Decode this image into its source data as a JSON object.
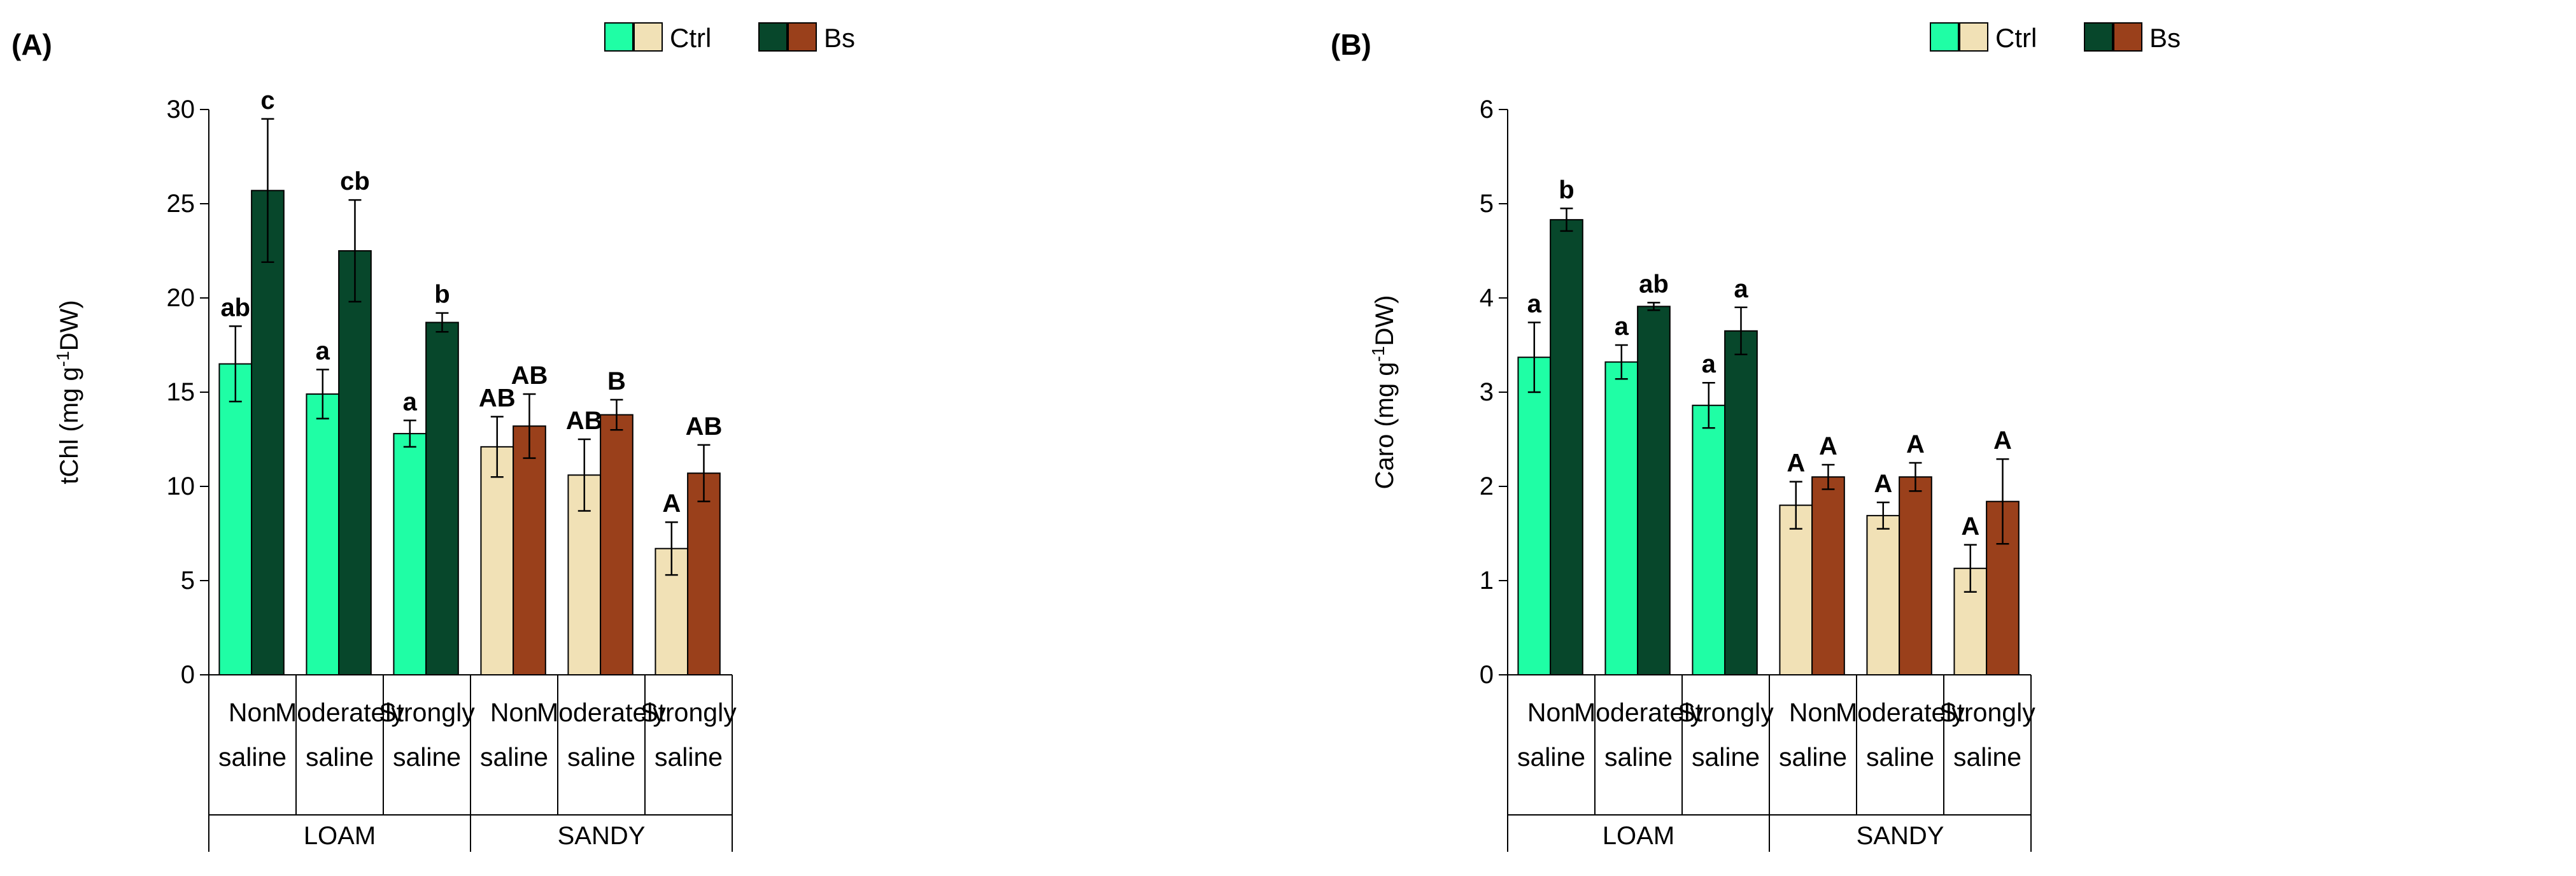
{
  "legend": {
    "items": [
      {
        "label": "Ctrl",
        "colors": [
          "#1ffea5",
          "#f1e1b6"
        ]
      },
      {
        "label": "Bs",
        "colors": [
          "#07472b",
          "#9a401b"
        ]
      }
    ]
  },
  "colors": {
    "loam_ctrl": "#1ffea5",
    "loam_bs": "#07472b",
    "sandy_ctrl": "#f1e1b6",
    "sandy_bs": "#9a401b"
  },
  "chart_data": [
    {
      "panel_label": "(A)",
      "type": "bar",
      "ylabel_main": "tChl (mg g",
      "ylabel_sup": "-1",
      "ylabel_tail": "DW)",
      "ylim": [
        0,
        30
      ],
      "yticks": [
        "0",
        "5",
        "10",
        "15",
        "20",
        "25",
        "30"
      ],
      "groups": [
        "LOAM",
        "SANDY"
      ],
      "categories": [
        [
          "Non",
          "saline"
        ],
        [
          "Moderately",
          "saline"
        ],
        [
          "Strongly",
          "saline"
        ],
        [
          "Non",
          "saline"
        ],
        [
          "Moderately",
          "saline"
        ],
        [
          "Strongly",
          "saline"
        ]
      ],
      "series": [
        {
          "name": "Ctrl",
          "values": [
            16.5,
            14.9,
            12.8,
            12.1,
            10.6,
            6.7
          ],
          "errors": [
            2.0,
            1.3,
            0.7,
            1.6,
            1.9,
            1.4
          ],
          "labels": [
            "ab",
            "a",
            "a",
            "AB",
            "AB",
            "A"
          ]
        },
        {
          "name": "Bs",
          "values": [
            25.7,
            22.5,
            18.7,
            13.2,
            13.8,
            10.7
          ],
          "errors": [
            3.8,
            2.7,
            0.5,
            1.7,
            0.8,
            1.5
          ],
          "labels": [
            "c",
            "cb",
            "b",
            "AB",
            "B",
            "AB"
          ]
        }
      ]
    },
    {
      "panel_label": "(B)",
      "type": "bar",
      "ylabel_main": "Caro (mg g",
      "ylabel_sup": "-1",
      "ylabel_tail": "DW)",
      "ylim": [
        0,
        6
      ],
      "yticks": [
        "0",
        "1",
        "2",
        "3",
        "4",
        "5",
        "6"
      ],
      "groups": [
        "LOAM",
        "SANDY"
      ],
      "categories": [
        [
          "Non",
          "saline"
        ],
        [
          "Moderately",
          "saline"
        ],
        [
          "Strongly",
          "saline"
        ],
        [
          "Non",
          "saline"
        ],
        [
          "Moderately",
          "saline"
        ],
        [
          "Strongly",
          "saline"
        ]
      ],
      "series": [
        {
          "name": "Ctrl",
          "values": [
            3.37,
            3.32,
            2.86,
            1.8,
            1.69,
            1.13
          ],
          "errors": [
            0.37,
            0.18,
            0.24,
            0.25,
            0.14,
            0.25
          ],
          "labels": [
            "a",
            "a",
            "a",
            "A",
            "A",
            "A"
          ]
        },
        {
          "name": "Bs",
          "values": [
            4.83,
            3.91,
            3.65,
            2.1,
            2.1,
            1.84
          ],
          "errors": [
            0.12,
            0.04,
            0.25,
            0.13,
            0.15,
            0.45
          ],
          "labels": [
            "b",
            "ab",
            "a",
            "A",
            "A",
            "A"
          ]
        }
      ]
    }
  ]
}
